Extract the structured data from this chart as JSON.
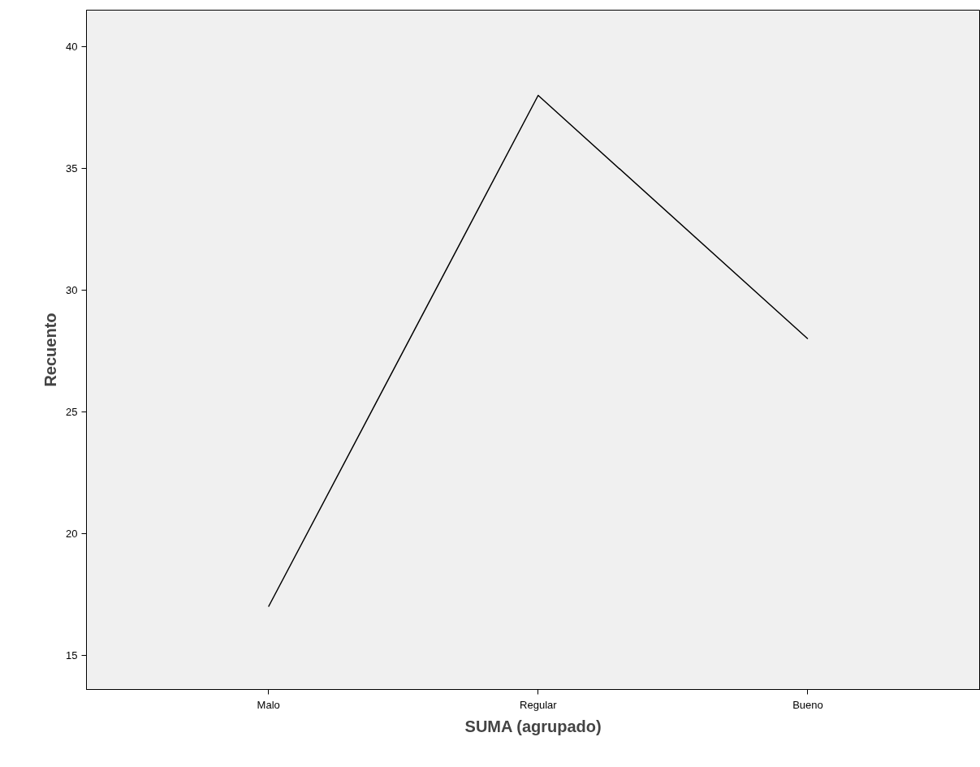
{
  "chart_data": {
    "type": "line",
    "xlabel": "SUMA (agrupado)",
    "ylabel": "Recuento",
    "categories": [
      "Malo",
      "Regular",
      "Bueno"
    ],
    "series": [
      {
        "color": "#000000",
        "values": [
          17,
          38,
          28
        ]
      }
    ],
    "ylim": [
      13.6,
      41.5
    ],
    "yticks": [
      15,
      20,
      25,
      30,
      35,
      40
    ],
    "grid": false,
    "marker": "none",
    "line_style": "solid"
  }
}
